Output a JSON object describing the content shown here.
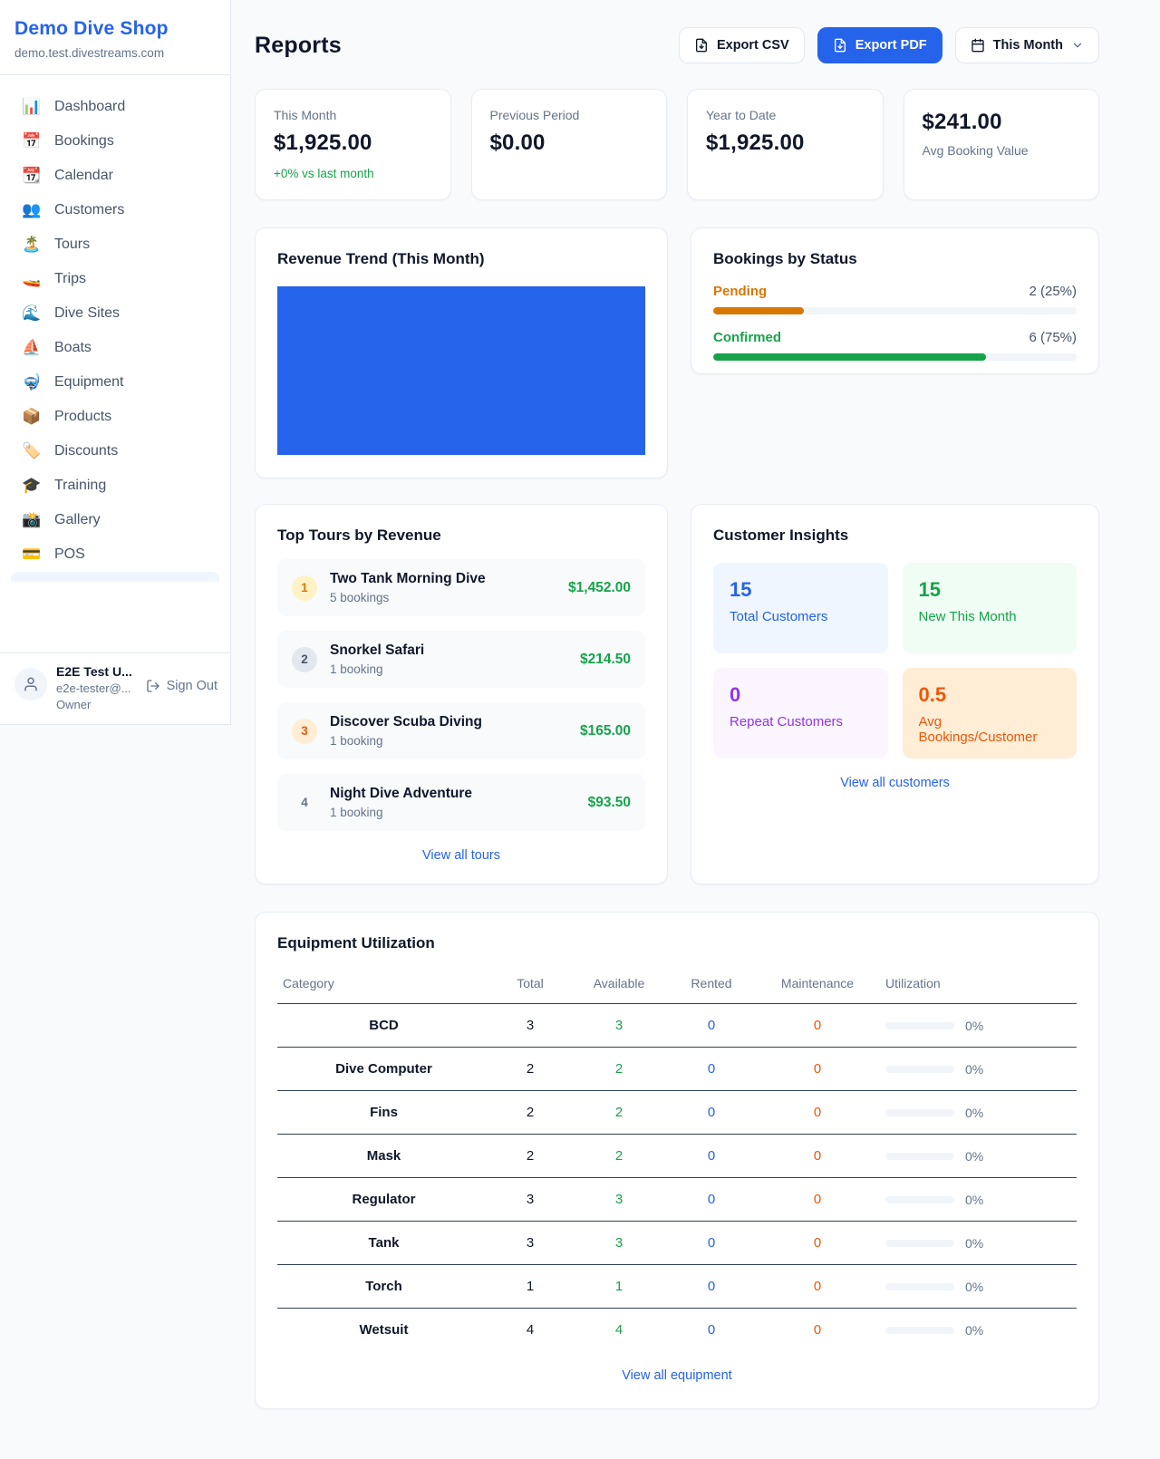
{
  "app": {
    "name": "Demo Dive Shop",
    "domain": "demo.test.divestreams.com"
  },
  "colors": {
    "brand_blue": "#2563eb",
    "success_green": "#16a34a",
    "pending_amber": "#d97706",
    "maintenance_orange": "#ea580c",
    "repeat_purple": "#9333ea",
    "chart_bar": "#2563eb"
  },
  "sidebar": {
    "items": [
      {
        "label": "Dashboard",
        "icon": "📊"
      },
      {
        "label": "Bookings",
        "icon": "📅"
      },
      {
        "label": "Calendar",
        "icon": "📆"
      },
      {
        "label": "Customers",
        "icon": "👥"
      },
      {
        "label": "Tours",
        "icon": "🏝️"
      },
      {
        "label": "Trips",
        "icon": "🚤"
      },
      {
        "label": "Dive Sites",
        "icon": "🌊"
      },
      {
        "label": "Boats",
        "icon": "⛵"
      },
      {
        "label": "Equipment",
        "icon": "🤿"
      },
      {
        "label": "Products",
        "icon": "📦"
      },
      {
        "label": "Discounts",
        "icon": "🏷️"
      },
      {
        "label": "Training",
        "icon": "🎓"
      },
      {
        "label": "Gallery",
        "icon": "📸"
      },
      {
        "label": "POS",
        "icon": "💳"
      }
    ],
    "user": {
      "name": "E2E Test U...",
      "email": "e2e-tester@...",
      "role": "Owner",
      "sign_out": "Sign Out"
    }
  },
  "header": {
    "title": "Reports",
    "export_csv": "Export CSV",
    "export_pdf": "Export PDF",
    "period": "This Month"
  },
  "stats": [
    {
      "label": "This Month",
      "value": "$1,925.00",
      "delta": "+0% vs last month"
    },
    {
      "label": "Previous Period",
      "value": "$0.00"
    },
    {
      "label": "Year to Date",
      "value": "$1,925.00"
    },
    {
      "label": "Avg Booking Value",
      "value": "$241.00"
    }
  ],
  "chart_data": {
    "type": "bar",
    "title": "Revenue Trend (This Month)",
    "categories": [
      "This Month"
    ],
    "values": [
      1925
    ],
    "ylim": [
      0,
      1925
    ],
    "bar_color": "#2563eb",
    "layout": {
      "axes_visible": false,
      "grid": false,
      "single_bar_fills_plot": true,
      "bar_height_pct": 100
    }
  },
  "revenue_trend": {
    "title": "Revenue Trend (This Month)"
  },
  "bookings_by_status": {
    "title": "Bookings by Status",
    "rows": [
      {
        "label": "Pending",
        "count_text": "2 (25%)",
        "pct": 25
      },
      {
        "label": "Confirmed",
        "count_text": "6 (75%)",
        "pct": 75
      }
    ]
  },
  "top_tours": {
    "title": "Top Tours by Revenue",
    "rows": [
      {
        "rank": "1",
        "name": "Two Tank Morning Dive",
        "bookings": "5 bookings",
        "amount": "$1,452.00"
      },
      {
        "rank": "2",
        "name": "Snorkel Safari",
        "bookings": "1 booking",
        "amount": "$214.50"
      },
      {
        "rank": "3",
        "name": "Discover Scuba Diving",
        "bookings": "1 booking",
        "amount": "$165.00"
      },
      {
        "rank": "4",
        "name": "Night Dive Adventure",
        "bookings": "1 booking",
        "amount": "$93.50"
      }
    ],
    "view_all": "View all tours"
  },
  "customer_insights": {
    "title": "Customer Insights",
    "tiles": [
      {
        "value": "15",
        "label": "Total Customers"
      },
      {
        "value": "15",
        "label": "New This Month"
      },
      {
        "value": "0",
        "label": "Repeat Customers"
      },
      {
        "value": "0.5",
        "label": "Avg Bookings/Customer"
      }
    ],
    "view_all": "View all customers"
  },
  "equipment": {
    "title": "Equipment Utilization",
    "columns": [
      "Category",
      "Total",
      "Available",
      "Rented",
      "Maintenance",
      "Utilization"
    ],
    "rows": [
      {
        "category": "BCD",
        "total": "3",
        "available": "3",
        "rented": "0",
        "maintenance": "0",
        "utilization_label": "0%",
        "utilization_pct": 0
      },
      {
        "category": "Dive Computer",
        "total": "2",
        "available": "2",
        "rented": "0",
        "maintenance": "0",
        "utilization_label": "0%",
        "utilization_pct": 0
      },
      {
        "category": "Fins",
        "total": "2",
        "available": "2",
        "rented": "0",
        "maintenance": "0",
        "utilization_label": "0%",
        "utilization_pct": 0
      },
      {
        "category": "Mask",
        "total": "2",
        "available": "2",
        "rented": "0",
        "maintenance": "0",
        "utilization_label": "0%",
        "utilization_pct": 0
      },
      {
        "category": "Regulator",
        "total": "3",
        "available": "3",
        "rented": "0",
        "maintenance": "0",
        "utilization_label": "0%",
        "utilization_pct": 0
      },
      {
        "category": "Tank",
        "total": "3",
        "available": "3",
        "rented": "0",
        "maintenance": "0",
        "utilization_label": "0%",
        "utilization_pct": 0
      },
      {
        "category": "Torch",
        "total": "1",
        "available": "1",
        "rented": "0",
        "maintenance": "0",
        "utilization_label": "0%",
        "utilization_pct": 0
      },
      {
        "category": "Wetsuit",
        "total": "4",
        "available": "4",
        "rented": "0",
        "maintenance": "0",
        "utilization_label": "0%",
        "utilization_pct": 0
      }
    ],
    "view_all": "View all equipment"
  }
}
